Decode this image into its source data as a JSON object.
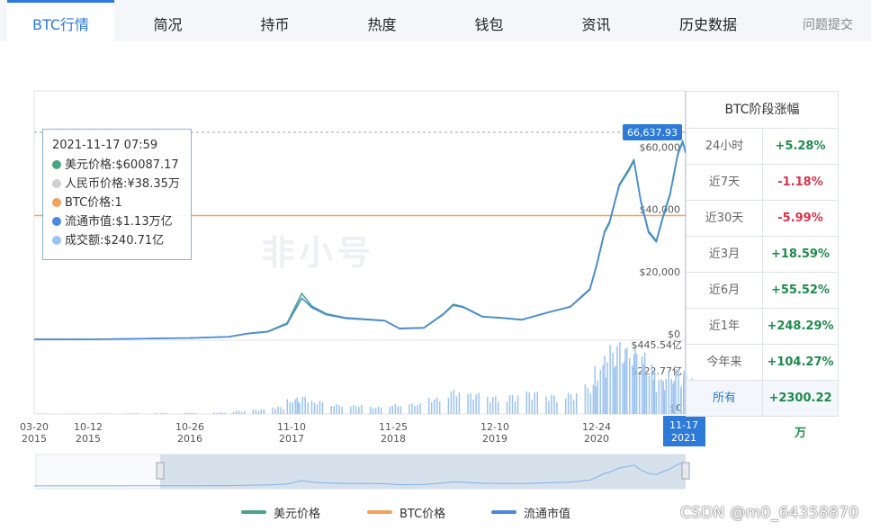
{
  "tabs": [
    {
      "label": "BTC行情",
      "active": true
    },
    {
      "label": "简况"
    },
    {
      "label": "持币"
    },
    {
      "label": "热度"
    },
    {
      "label": "钱包"
    },
    {
      "label": "资讯"
    },
    {
      "label": "历史数据"
    },
    {
      "label": "问题提交"
    }
  ],
  "watermark_brand": "非小号",
  "tooltip": {
    "datetime": "2021-11-17 07:59",
    "rows": [
      {
        "label": "美元价格:$60087.17",
        "color": "#4aa582"
      },
      {
        "label": "人民币价格:¥38.35万",
        "color": "#d0d0d0"
      },
      {
        "label": "BTC价格:1",
        "color": "#f4a25b"
      },
      {
        "label": "流通市值:$1.13万亿",
        "color": "#4a87e0"
      },
      {
        "label": "成交额:$240.71亿",
        "color": "#9cc3f0"
      }
    ]
  },
  "price_marker": "66,637.93",
  "x_cursor": {
    "line1": "11-17",
    "line2": "2021"
  },
  "stage_panel": {
    "title": "BTC阶段涨幅",
    "rows": [
      {
        "label": "24小时",
        "value": "+5.28%",
        "color": "#1e8a4c"
      },
      {
        "label": "近7天",
        "value": "-1.18%",
        "color": "#d9334a"
      },
      {
        "label": "近30天",
        "value": "-5.99%",
        "color": "#d9334a"
      },
      {
        "label": "近3月",
        "value": "+18.59%",
        "color": "#1e8a4c"
      },
      {
        "label": "近6月",
        "value": "+55.52%",
        "color": "#1e8a4c"
      },
      {
        "label": "近1年",
        "value": "+248.29%",
        "color": "#1e8a4c"
      },
      {
        "label": "今年来",
        "value": "+104.27%",
        "color": "#1e8a4c"
      },
      {
        "label": "所有",
        "value": "+2300.22万",
        "color": "#1e8a4c",
        "active": true
      }
    ]
  },
  "legend": [
    {
      "label": "美元价格",
      "color": "#4aa582"
    },
    {
      "label": "BTC价格",
      "color": "#f4a25b"
    },
    {
      "label": "流通市值",
      "color": "#4a87e0"
    }
  ],
  "csdn_watermark": "CSDN @m0_64358870",
  "chart_data": {
    "type": "line",
    "x_tick_labels": [
      [
        "03-20",
        "2015"
      ],
      [
        "10-12",
        "2015"
      ],
      [
        "10-26",
        "2016"
      ],
      [
        "11-10",
        "2017"
      ],
      [
        "11-25",
        "2018"
      ],
      [
        "12-10",
        "2019"
      ],
      [
        "12-24",
        "2020"
      ],
      [
        "11-17",
        "2021"
      ]
    ],
    "y_axis_price": {
      "ticks": [
        "$0",
        "$20,000",
        "$40,000",
        "$60,000"
      ],
      "range": [
        0,
        80000
      ]
    },
    "y_axis_volume": {
      "ticks": [
        "$0",
        "$222.77亿",
        "$445.54亿"
      ],
      "range": [
        0,
        445.54
      ]
    },
    "btc_price_line": 40000,
    "series": [
      {
        "name": "美元价格",
        "color": "#4aa582",
        "x": [
          2015.21,
          2015.5,
          2015.8,
          2016.2,
          2016.5,
          2016.8,
          2017.2,
          2017.4,
          2017.6,
          2017.8,
          2017.95,
          2018.05,
          2018.2,
          2018.4,
          2018.6,
          2018.8,
          2018.95,
          2019.2,
          2019.4,
          2019.5,
          2019.6,
          2019.8,
          2020.0,
          2020.2,
          2020.5,
          2020.7,
          2020.9,
          2020.97,
          2021.05,
          2021.1,
          2021.2,
          2021.3,
          2021.35,
          2021.42,
          2021.5,
          2021.58,
          2021.65,
          2021.72,
          2021.8,
          2021.85,
          2021.88
        ],
        "y": [
          250,
          260,
          280,
          420,
          620,
          690,
          1100,
          2200,
          2800,
          5500,
          15000,
          11000,
          8500,
          7200,
          6800,
          6300,
          3800,
          4000,
          8500,
          11500,
          10800,
          7600,
          7200,
          6600,
          9200,
          10800,
          16500,
          24500,
          35000,
          38000,
          50000,
          55000,
          58000,
          45000,
          35000,
          32000,
          40000,
          47000,
          60000,
          64000,
          60087
        ]
      },
      {
        "name": "流通市值",
        "color": "#4a87e0",
        "x": [
          2015.21,
          2015.5,
          2015.8,
          2016.2,
          2016.5,
          2016.8,
          2017.2,
          2017.4,
          2017.6,
          2017.8,
          2017.95,
          2018.05,
          2018.2,
          2018.4,
          2018.6,
          2018.8,
          2018.95,
          2019.2,
          2019.4,
          2019.5,
          2019.6,
          2019.8,
          2020.0,
          2020.2,
          2020.5,
          2020.7,
          2020.9,
          2020.97,
          2021.05,
          2021.1,
          2021.2,
          2021.3,
          2021.35,
          2021.42,
          2021.5,
          2021.58,
          2021.65,
          2021.72,
          2021.8,
          2021.85,
          2021.88
        ],
        "y": [
          250,
          260,
          280,
          420,
          620,
          690,
          1100,
          2100,
          2700,
          5200,
          13500,
          10500,
          8200,
          7000,
          6600,
          6200,
          3700,
          3900,
          8300,
          11200,
          10600,
          7500,
          7100,
          6500,
          9100,
          10700,
          16200,
          24000,
          34500,
          37500,
          49500,
          54500,
          57500,
          44500,
          34500,
          31500,
          39500,
          46500,
          59500,
          63500,
          60087
        ]
      }
    ],
    "volume_bars": [
      [
        2015.3,
        2
      ],
      [
        2015.6,
        3
      ],
      [
        2015.9,
        3
      ],
      [
        2016.2,
        5
      ],
      [
        2016.5,
        6
      ],
      [
        2016.8,
        7
      ],
      [
        2017.1,
        10
      ],
      [
        2017.3,
        20
      ],
      [
        2017.5,
        30
      ],
      [
        2017.7,
        45
      ],
      [
        2017.85,
        90
      ],
      [
        2017.95,
        110
      ],
      [
        2018.1,
        80
      ],
      [
        2018.3,
        60
      ],
      [
        2018.5,
        55
      ],
      [
        2018.7,
        45
      ],
      [
        2018.9,
        60
      ],
      [
        2019.1,
        65
      ],
      [
        2019.3,
        100
      ],
      [
        2019.5,
        150
      ],
      [
        2019.7,
        130
      ],
      [
        2019.9,
        110
      ],
      [
        2020.1,
        120
      ],
      [
        2020.3,
        140
      ],
      [
        2020.5,
        120
      ],
      [
        2020.7,
        130
      ],
      [
        2020.9,
        180
      ],
      [
        2021.0,
        300
      ],
      [
        2021.1,
        420
      ],
      [
        2021.2,
        445
      ],
      [
        2021.3,
        400
      ],
      [
        2021.4,
        380
      ],
      [
        2021.5,
        300
      ],
      [
        2021.6,
        220
      ],
      [
        2021.7,
        260
      ],
      [
        2021.8,
        280
      ],
      [
        2021.88,
        240.71
      ]
    ],
    "navigator_range": [
      2016.5,
      2021.88
    ]
  }
}
